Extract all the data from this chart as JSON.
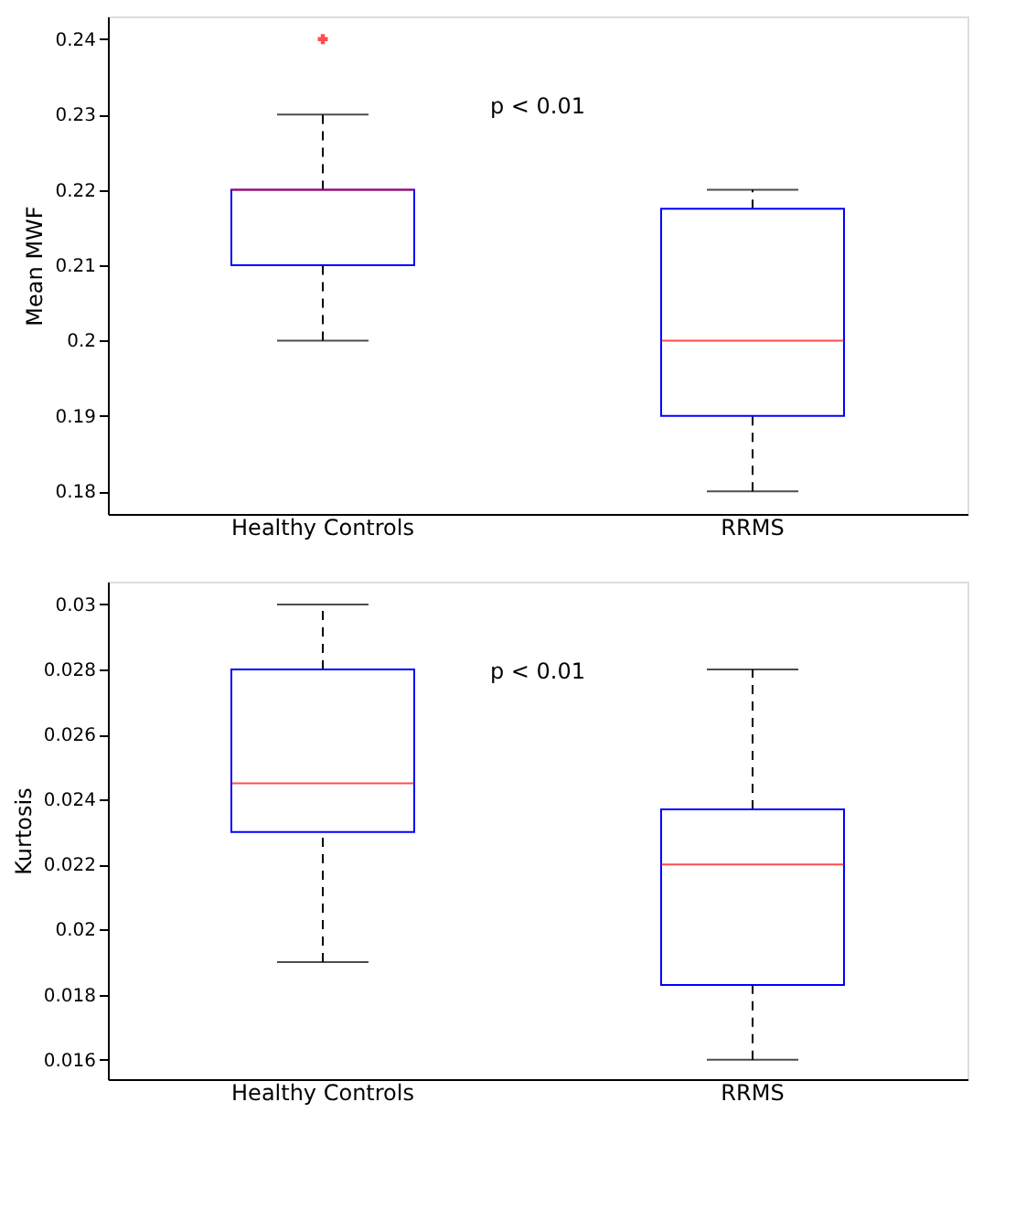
{
  "chart_data": [
    {
      "type": "box",
      "ylabel": "Mean MWF",
      "categories": [
        "Healthy Controls",
        "RRMS"
      ],
      "ylim": [
        0.177,
        0.243
      ],
      "yticks": [
        0.18,
        0.19,
        {
          "value": 0.2,
          "label": "0.2"
        },
        0.21,
        0.22,
        0.23,
        0.24
      ],
      "annotations": [
        "p < 0.01"
      ],
      "series": [
        {
          "color": "#0000ff",
          "boxes": [
            {
              "low": 0.2,
              "q1": 0.21,
              "median": 0.22,
              "q3": 0.22,
              "high": 0.23,
              "outliers": [
                0.24
              ]
            },
            {
              "low": 0.18,
              "q1": 0.19,
              "median": 0.2,
              "q3": 0.2175,
              "high": 0.22
            }
          ]
        }
      ]
    },
    {
      "type": "box",
      "ylabel": "Kurtosis",
      "categories": [
        "Healthy Controls",
        "RRMS"
      ],
      "ylim": [
        0.0154,
        0.0307
      ],
      "yticks": [
        0.016,
        0.018,
        {
          "value": 0.02,
          "label": "0.02"
        },
        0.022,
        0.024,
        0.026,
        0.028,
        0.03
      ],
      "annotations": [
        "p < 0.01"
      ],
      "series": [
        {
          "color": "#0000ff",
          "boxes": [
            {
              "low": 0.019,
              "q1": 0.023,
              "median": 0.0245,
              "q3": 0.028,
              "high": 0.03
            },
            {
              "low": 0.016,
              "q1": 0.0183,
              "median": 0.022,
              "q3": 0.0237,
              "high": 0.028
            }
          ]
        }
      ]
    }
  ]
}
